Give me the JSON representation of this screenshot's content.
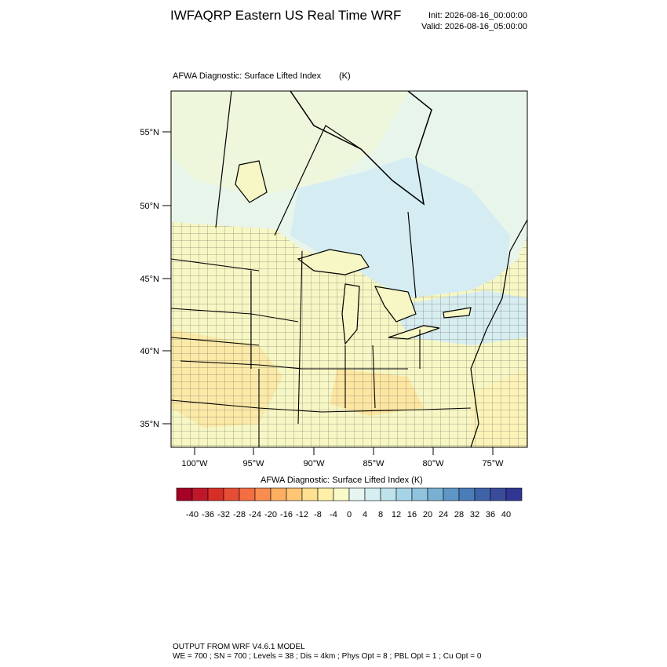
{
  "header": {
    "title": "IWFAQRP Eastern US Real Time WRF",
    "init": "Init: 2026-08-16_00:00:00",
    "valid": "Valid: 2026-08-16_05:00:00"
  },
  "map": {
    "field": "AFWA Diagnostic: Surface Lifted Index",
    "units": "(K)",
    "lat_labels": [
      "55°N",
      "50°N",
      "45°N",
      "40°N",
      "35°N"
    ],
    "lon_labels": [
      "100°W",
      "95°W",
      "90°W",
      "85°W",
      "80°W",
      "75°W"
    ]
  },
  "colorbar": {
    "title": "AFWA Diagnostic: Surface Lifted Index  (K)",
    "colors": [
      "#a50026",
      "#c0182a",
      "#d62f27",
      "#e54e35",
      "#f46d43",
      "#f88c51",
      "#fdae61",
      "#fdc574",
      "#fee090",
      "#ffefa8",
      "#f8fbc8",
      "#e6f5ef",
      "#d4eef2",
      "#bfe3ed",
      "#a6d4e6",
      "#90c3dd",
      "#78b0d3",
      "#5e96c5",
      "#4a7cb8",
      "#3f62a8",
      "#3a4b9b",
      "#313695"
    ],
    "labels": [
      -40,
      -36,
      -32,
      -28,
      -24,
      -20,
      -16,
      -12,
      -8,
      -4,
      0,
      4,
      8,
      12,
      16,
      20,
      24,
      28,
      32,
      36,
      40
    ]
  },
  "footer": {
    "line1": "OUTPUT FROM WRF V4.6.1 MODEL",
    "line2": "WE = 700 ; SN = 700 ; Levels = 38 ; Dis = 4km ; Phys Opt = 8 ; PBL Opt = 1 ; Cu Opt = 0"
  }
}
